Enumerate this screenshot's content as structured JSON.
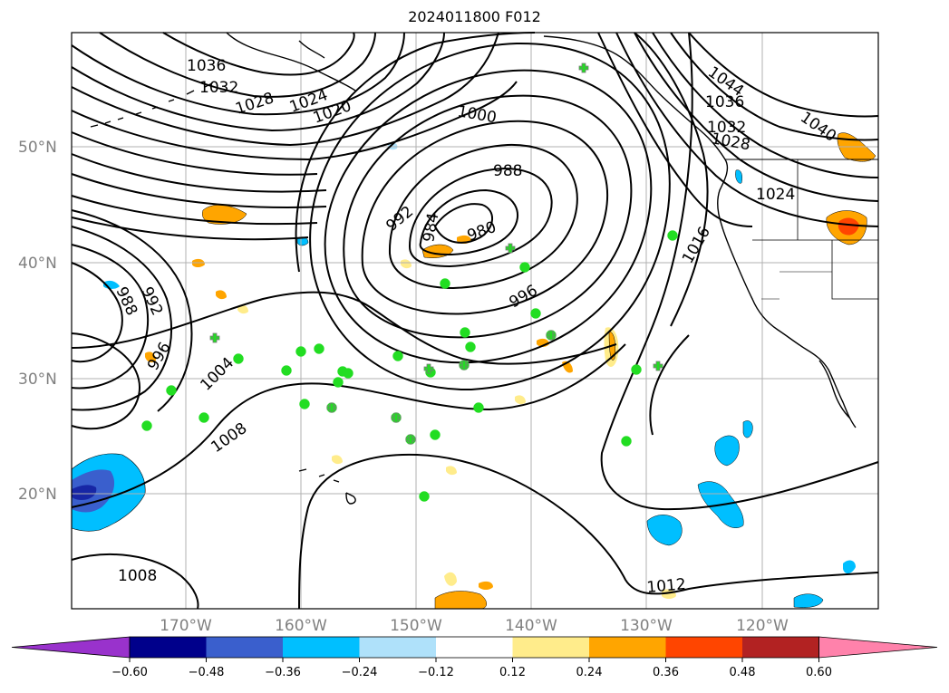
{
  "title": "2024011800 F012",
  "lat_labels": [
    {
      "id": "lat-50",
      "text": "50°N",
      "lat": 50
    },
    {
      "id": "lat-40",
      "text": "40°N",
      "lat": 40
    },
    {
      "id": "lat-30",
      "text": "30°N",
      "lat": 30
    },
    {
      "id": "lat-20",
      "text": "20°N",
      "lat": 20
    }
  ],
  "lon_labels": [
    {
      "id": "lon-170w",
      "text": "170°W",
      "lon": -170
    },
    {
      "id": "lon-160w",
      "text": "160°W",
      "lon": -160
    },
    {
      "id": "lon-150w",
      "text": "150°W",
      "lon": -150
    },
    {
      "id": "lon-140w",
      "text": "140°W",
      "lon": -140
    },
    {
      "id": "lon-130w",
      "text": "130°W",
      "lon": -130
    },
    {
      "id": "lon-120w",
      "text": "120°W",
      "lon": -120
    }
  ],
  "isobar_labels": [
    "1036",
    "1032",
    "1028",
    "1024",
    "1020",
    "1000",
    "988",
    "992",
    "984",
    "980",
    "996",
    "1016",
    "1044",
    "1036",
    "1032",
    "1028",
    "1040",
    "1024",
    "988",
    "992",
    "996",
    "1004",
    "1008",
    "1008",
    "1012"
  ],
  "colorbar": {
    "colors": [
      "#9932cc",
      "#00008b",
      "#3a5fcd",
      "#00bfff",
      "#afe1fa",
      "#ffffff",
      "#ffec8b",
      "#ffa500",
      "#ff4500",
      "#b22222",
      "#ff82ab"
    ],
    "ticks": [
      "−0.60",
      "−0.48",
      "−0.36",
      "−0.24",
      "−0.12",
      "0.12",
      "0.24",
      "0.36",
      "0.48",
      "0.60"
    ]
  },
  "colors": {
    "observation_marker": "#22dd22",
    "marker_outline": "#7a7a7a",
    "grid": "#b0b0b0",
    "isobar": "#000000"
  }
}
